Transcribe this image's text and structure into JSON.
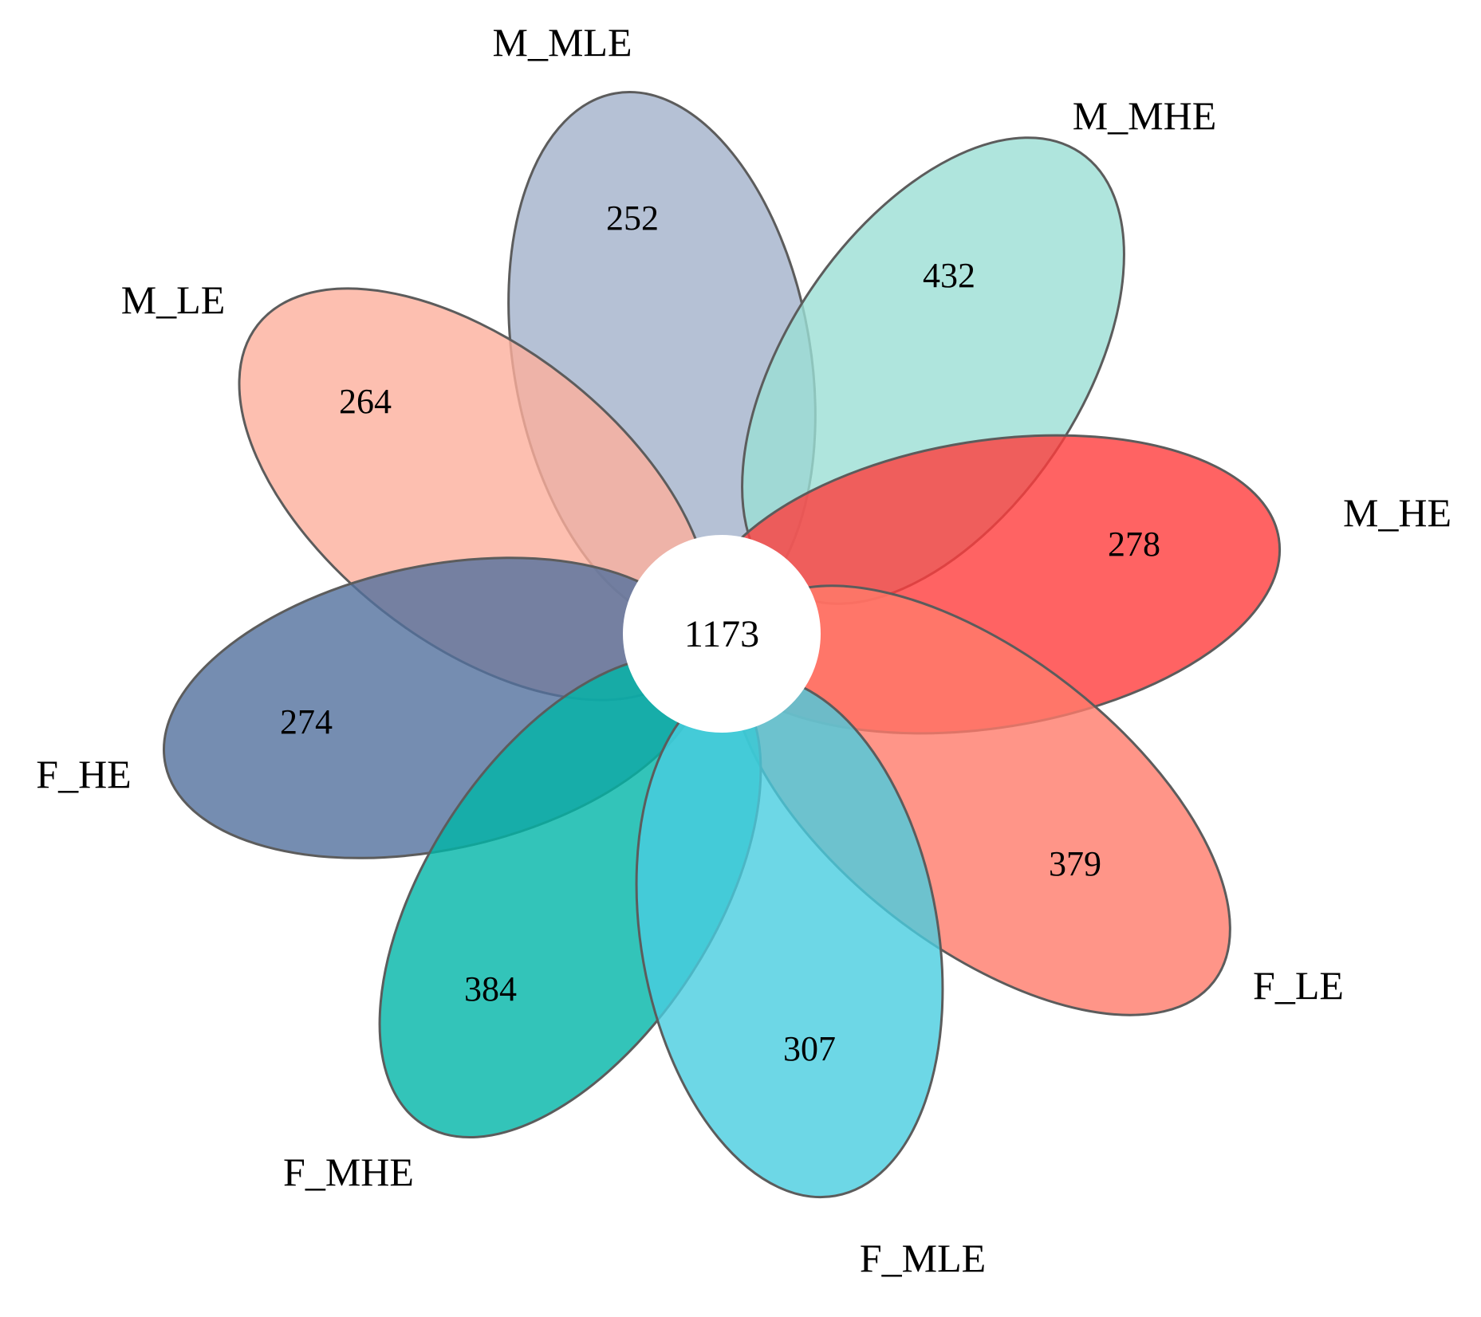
{
  "diagram": {
    "type": "flower-venn",
    "core": {
      "count": "1173"
    },
    "petals": [
      {
        "key": "m-mle",
        "label": "M_MLE",
        "count": "252",
        "color": "#a2b1cb"
      },
      {
        "key": "m-mhe",
        "label": "M_MHE",
        "count": "432",
        "color": "#9bdfd4"
      },
      {
        "key": "m-le",
        "label": "M_LE",
        "count": "264",
        "color": "#fdaf9c"
      },
      {
        "key": "m-he",
        "label": "M_HE",
        "count": "278",
        "color": "#ff3c3c"
      },
      {
        "key": "f-he",
        "label": "F_HE",
        "count": "274",
        "color": "#53709e"
      },
      {
        "key": "f-le",
        "label": "F_LE",
        "count": "379",
        "color": "#ff7a6a"
      },
      {
        "key": "f-mhe",
        "label": "F_MHE",
        "count": "384",
        "color": "#00b5a8"
      },
      {
        "key": "f-mle",
        "label": "F_MLE",
        "count": "307",
        "color": "#48cde0"
      }
    ]
  }
}
